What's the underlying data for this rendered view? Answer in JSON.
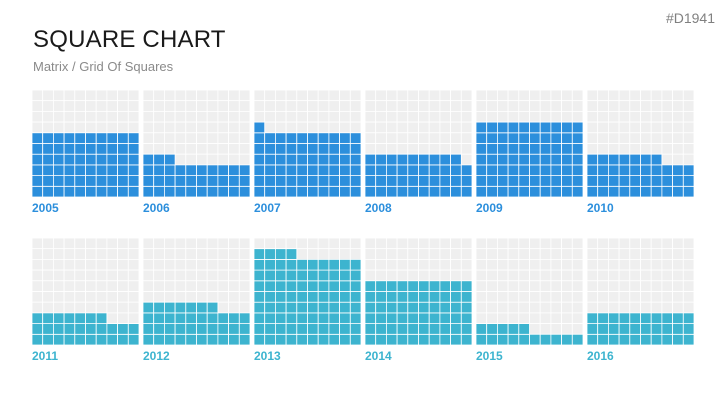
{
  "header": {
    "code": "#D1941",
    "title": "SQUARE CHART",
    "subtitle": "Matrix / Grid Of Squares"
  },
  "colors": {
    "row1": "#2c8fdc",
    "row2": "#3db4cf",
    "row1_label": "#2c8fdc",
    "row2_label": "#3db4cf",
    "cell_bg": "#efefef",
    "cell_line": "#ffffff"
  },
  "chart_data": {
    "type": "bar",
    "grid": {
      "columns_per_panel": 10,
      "rows_per_panel": 10
    },
    "categories": [
      "2005",
      "2006",
      "2007",
      "2008",
      "2009",
      "2010",
      "2011",
      "2012",
      "2013",
      "2014",
      "2015",
      "2016"
    ],
    "panels": [
      {
        "year": "2005",
        "columns": [
          6,
          6,
          6,
          6,
          6,
          6,
          6,
          6,
          6,
          6
        ]
      },
      {
        "year": "2006",
        "columns": [
          4,
          4,
          4,
          3,
          3,
          3,
          3,
          3,
          3,
          3
        ]
      },
      {
        "year": "2007",
        "columns": [
          7,
          6,
          6,
          6,
          6,
          6,
          6,
          6,
          6,
          6
        ]
      },
      {
        "year": "2008",
        "columns": [
          4,
          4,
          4,
          4,
          4,
          4,
          4,
          4,
          4,
          3
        ]
      },
      {
        "year": "2009",
        "columns": [
          7,
          7,
          7,
          7,
          7,
          7,
          7,
          7,
          7,
          7
        ]
      },
      {
        "year": "2010",
        "columns": [
          4,
          4,
          4,
          4,
          4,
          4,
          4,
          3,
          3,
          3
        ]
      },
      {
        "year": "2011",
        "columns": [
          3,
          3,
          3,
          3,
          3,
          3,
          3,
          2,
          2,
          2
        ]
      },
      {
        "year": "2012",
        "columns": [
          4,
          4,
          4,
          4,
          4,
          4,
          4,
          3,
          3,
          3
        ]
      },
      {
        "year": "2013",
        "columns": [
          9,
          9,
          9,
          9,
          8,
          8,
          8,
          8,
          8,
          8
        ]
      },
      {
        "year": "2014",
        "columns": [
          6,
          6,
          6,
          6,
          6,
          6,
          6,
          6,
          6,
          6
        ]
      },
      {
        "year": "2015",
        "columns": [
          2,
          2,
          2,
          2,
          2,
          1,
          1,
          1,
          1,
          1
        ]
      },
      {
        "year": "2016",
        "columns": [
          3,
          3,
          3,
          3,
          3,
          3,
          3,
          3,
          3,
          3
        ]
      }
    ]
  }
}
